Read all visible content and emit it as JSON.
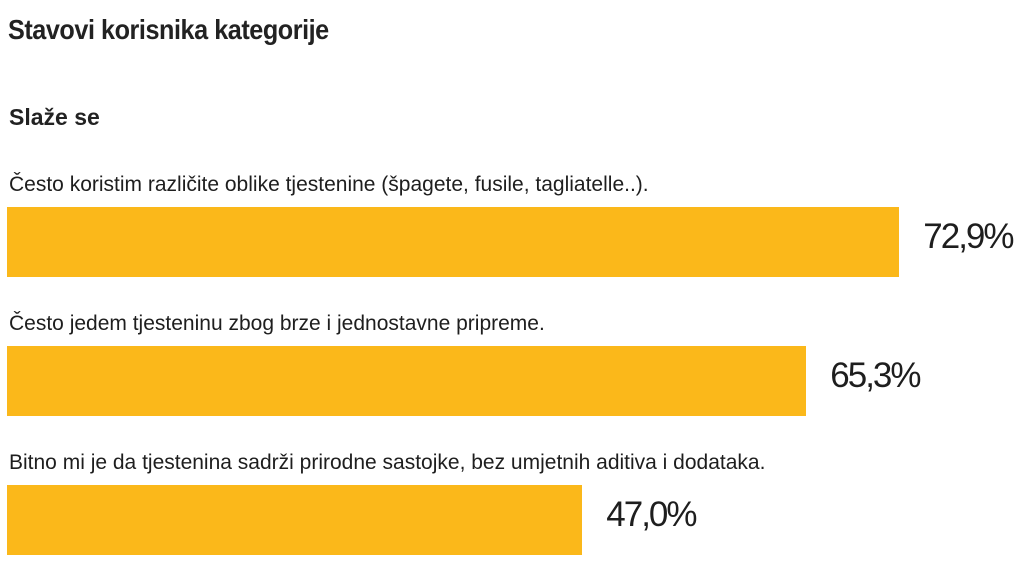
{
  "title": "Stavovi korisnika kategorije",
  "subtitle": "Slaže se",
  "colors": {
    "bar": "#fbb81a",
    "text": "#222222"
  },
  "chart_data": {
    "type": "bar",
    "orientation": "horizontal",
    "title": "Stavovi korisnika kategorije",
    "subtitle": "Slaže se",
    "categories": [
      "Često koristim različite oblike tjestenine (špagete, fusile, tagliatelle..).",
      "Često jedem tjesteninu zbog brze i jednostavne pripreme.",
      "Bitno mi je da tjestenina sadrži prirodne sastojke, bez umjetnih aditiva i dodataka."
    ],
    "values": [
      72.9,
      65.3,
      47.0
    ],
    "value_labels": [
      "72,9%",
      "65,3%",
      "47,0%"
    ],
    "unit": "%",
    "xlim": [
      0,
      100
    ],
    "grid": false,
    "legend": "none"
  }
}
